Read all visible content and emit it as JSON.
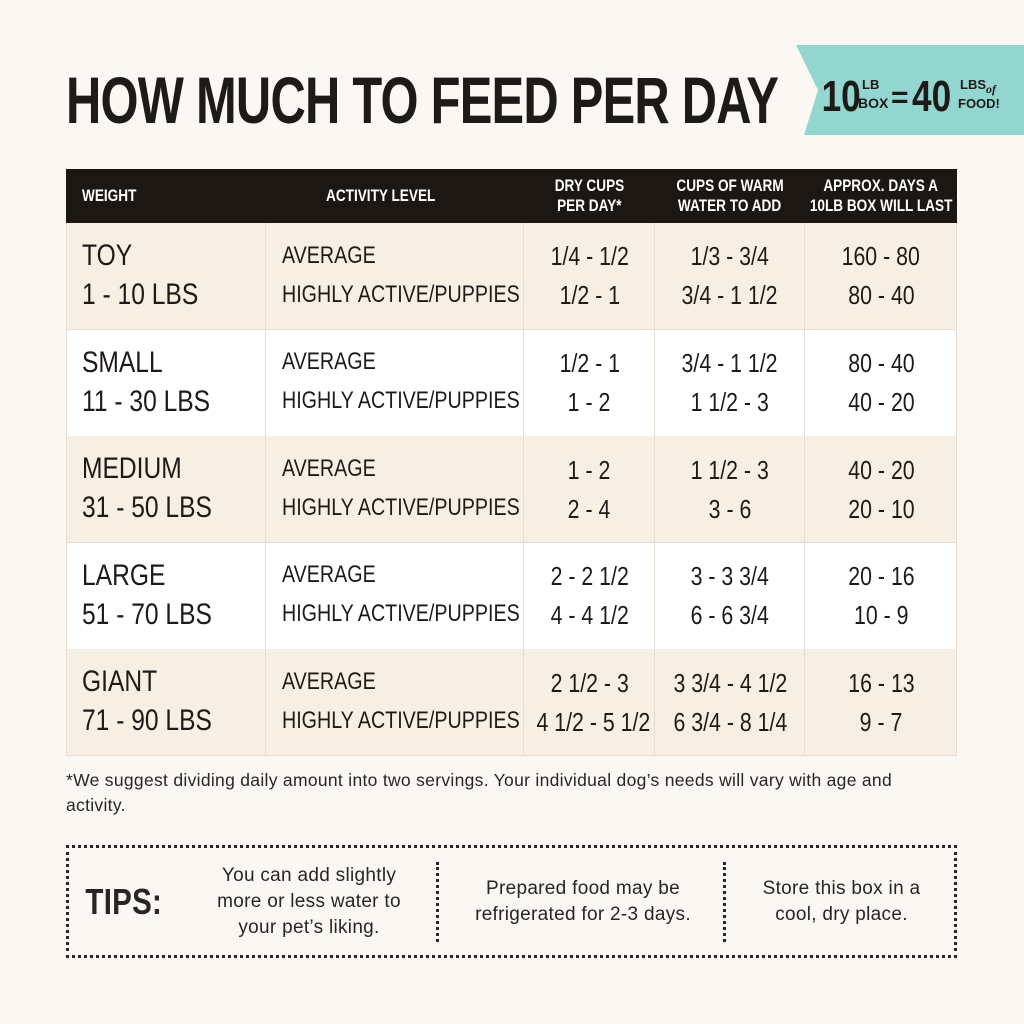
{
  "title": "HOW MUCH TO FEED PER DAY",
  "badge": {
    "left_number": "10",
    "left_unit_top": "LB",
    "left_unit_bottom": "BOX",
    "equals": "=",
    "right_number": "40",
    "right_unit_top": "LBS",
    "right_unit_of": "of",
    "right_unit_bottom": "FOOD!"
  },
  "table": {
    "headers": [
      [
        "WEIGHT"
      ],
      [
        "ACTIVITY LEVEL"
      ],
      [
        "DRY CUPS",
        "PER DAY*"
      ],
      [
        "CUPS OF WARM",
        "WATER TO ADD"
      ],
      [
        "APPROX. DAYS A",
        "10LB BOX WILL LAST"
      ]
    ],
    "rows": [
      {
        "weight": "TOY",
        "range": "1 - 10 LBS",
        "activity": [
          "AVERAGE",
          "HIGHLY ACTIVE/PUPPIES"
        ],
        "dry": [
          "1/4 - 1/2",
          "1/2 - 1"
        ],
        "water": [
          "1/3 - 3/4",
          "3/4 - 1 1/2"
        ],
        "days": [
          "160 - 80",
          "80 - 40"
        ]
      },
      {
        "weight": "SMALL",
        "range": "11 - 30 LBS",
        "activity": [
          "AVERAGE",
          "HIGHLY ACTIVE/PUPPIES"
        ],
        "dry": [
          "1/2 - 1",
          "1 - 2"
        ],
        "water": [
          "3/4 - 1 1/2",
          "1 1/2 - 3"
        ],
        "days": [
          "80 - 40",
          "40 - 20"
        ]
      },
      {
        "weight": "MEDIUM",
        "range": "31 - 50 LBS",
        "activity": [
          "AVERAGE",
          "HIGHLY ACTIVE/PUPPIES"
        ],
        "dry": [
          "1 - 2",
          "2 - 4"
        ],
        "water": [
          "1 1/2 - 3",
          "3 - 6"
        ],
        "days": [
          "40 - 20",
          "20 - 10"
        ]
      },
      {
        "weight": "LARGE",
        "range": "51 - 70 LBS",
        "activity": [
          "AVERAGE",
          "HIGHLY ACTIVE/PUPPIES"
        ],
        "dry": [
          "2 - 2 1/2",
          "4 - 4 1/2"
        ],
        "water": [
          "3 - 3 3/4",
          "6 - 6 3/4"
        ],
        "days": [
          "20 - 16",
          "10 - 9"
        ]
      },
      {
        "weight": "GIANT",
        "range": "71 - 90 LBS",
        "activity": [
          "AVERAGE",
          "HIGHLY ACTIVE/PUPPIES"
        ],
        "dry": [
          "2 1/2 - 3",
          "4 1/2 - 5 1/2"
        ],
        "water": [
          "3 3/4 - 4 1/2",
          "6 3/4 - 8 1/4"
        ],
        "days": [
          "16 - 13",
          "9 - 7"
        ]
      }
    ]
  },
  "footnote": "*We suggest dividing daily amount into two servings. Your individual dog’s needs will vary with age and activity.",
  "tips": {
    "label": "TIPS:",
    "items": [
      "You can add slightly more or less water to your pet’s liking.",
      "Prepared food may be refrigerated for 2-3 days.",
      "Store this box in a cool, dry place."
    ]
  }
}
